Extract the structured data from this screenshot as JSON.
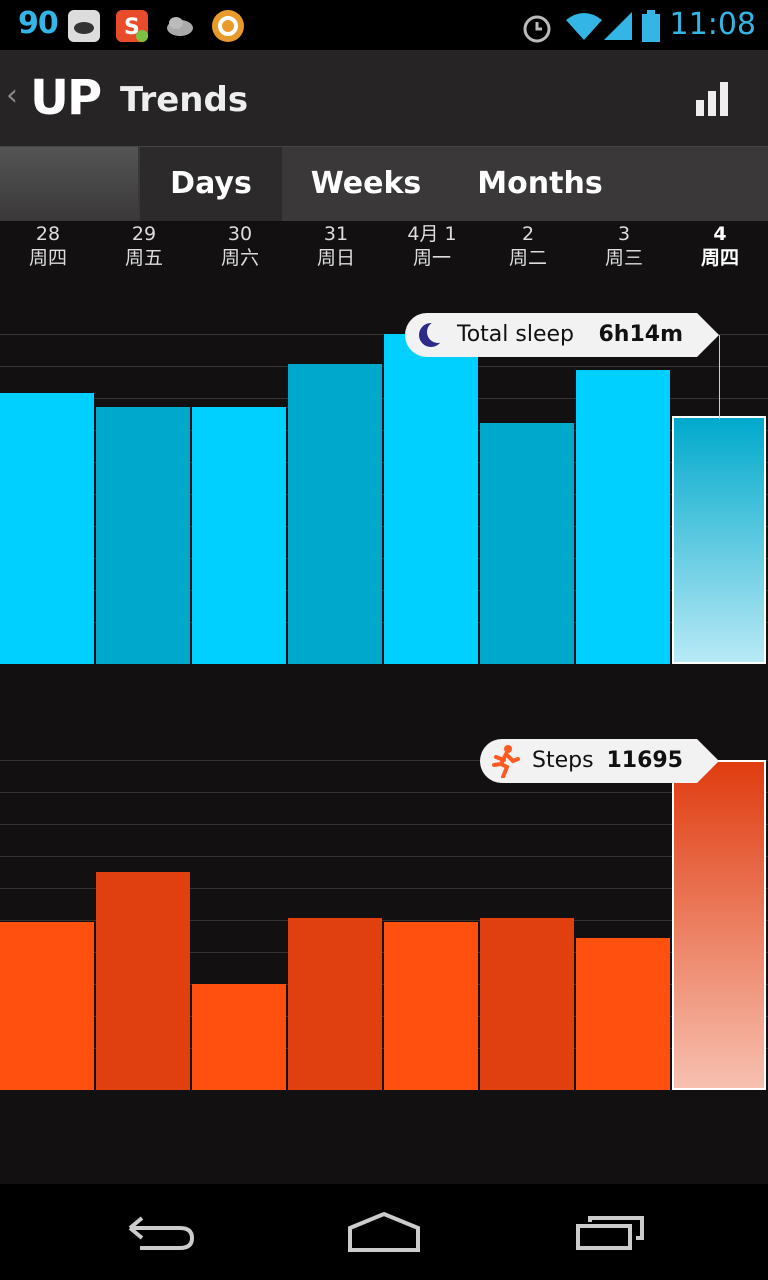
{
  "status_bar": {
    "number": "90",
    "time": "11:08",
    "icons": [
      "pea-pod-app-icon",
      "s-app-icon",
      "cloud-icon",
      "amazon-icon",
      "alarm-icon",
      "wifi-icon",
      "signal-icon",
      "battery-icon"
    ]
  },
  "action_bar": {
    "logo": "UP",
    "title": "Trends",
    "back": "‹"
  },
  "tabs": [
    {
      "label": "Days",
      "active": true
    },
    {
      "label": "Weeks",
      "active": false
    },
    {
      "label": "Months",
      "active": false
    }
  ],
  "days": [
    {
      "date": "28",
      "weekday": "周四"
    },
    {
      "date": "29",
      "weekday": "周五"
    },
    {
      "date": "30",
      "weekday": "周六"
    },
    {
      "date": "31",
      "weekday": "周日"
    },
    {
      "date": "4月 1",
      "weekday": "周一"
    },
    {
      "date": "2",
      "weekday": "周二"
    },
    {
      "date": "3",
      "weekday": "周三"
    },
    {
      "date": "4",
      "weekday": "周四",
      "current": true
    }
  ],
  "sleep": {
    "label": "Total sleep",
    "value": "6h14m",
    "levels": [
      0.82,
      0.78,
      0.78,
      0.91,
      1.0,
      0.73,
      0.89,
      0.75
    ],
    "colors": [
      "#00d0ff",
      "#00a9cc",
      "#00d0ff",
      "#00a9cc",
      "#00d0ff",
      "#00a9cc",
      "#00d0ff",
      "#00a9cc"
    ]
  },
  "steps": {
    "label": "Steps",
    "value": "11695",
    "levels": [
      0.51,
      0.66,
      0.32,
      0.52,
      0.51,
      0.52,
      0.46,
      1.0
    ],
    "colors": [
      "#ff5010",
      "#e04010",
      "#ff5010",
      "#e04010",
      "#ff5010",
      "#e04010",
      "#ff5010",
      "#e04010"
    ]
  }
}
